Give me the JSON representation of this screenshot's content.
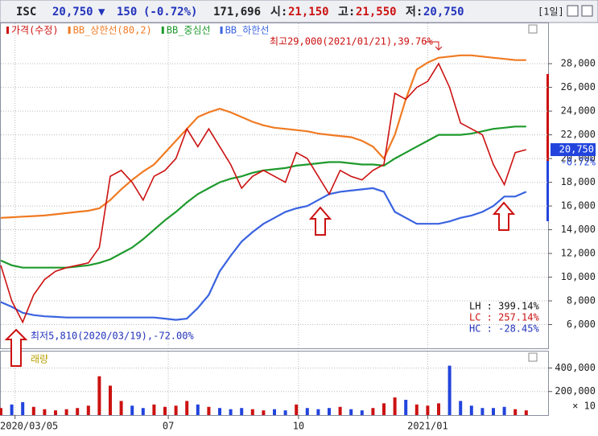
{
  "header": {
    "ticker": "ISC",
    "price": "20,750",
    "arrow": "▼",
    "change": "150",
    "change_pct": "(-0.72%)",
    "volume": "171,696",
    "open_label": "시:",
    "open": "21,150",
    "high_label": "고:",
    "high": "21,550",
    "low_label": "저:",
    "low": "20,750",
    "period": "[1일]"
  },
  "chart_data": [
    {
      "type": "line",
      "x": [
        0,
        1,
        2,
        3,
        4,
        5,
        6,
        7,
        8,
        9,
        10,
        11,
        12,
        13,
        14,
        15,
        16,
        17,
        18,
        19,
        20,
        21,
        22,
        23,
        24,
        25,
        26,
        27,
        28,
        29,
        30,
        31,
        32,
        33,
        34,
        35,
        36,
        37,
        38,
        39,
        40,
        41,
        42,
        43,
        44,
        45,
        46,
        47,
        48
      ],
      "series": [
        {
          "name": "가격(수정)",
          "color": "#cc1111",
          "values": [
            11000,
            8000,
            6200,
            8500,
            9800,
            10500,
            10800,
            11000,
            11200,
            12500,
            18500,
            19000,
            18000,
            16500,
            18500,
            19000,
            20000,
            22500,
            21000,
            22500,
            21000,
            19500,
            17500,
            18500,
            19000,
            18500,
            18000,
            20500,
            20000,
            18500,
            17000,
            19000,
            18500,
            18200,
            19000,
            19500,
            25500,
            25000,
            26000,
            26500,
            28000,
            26000,
            23000,
            22500,
            22000,
            19500,
            17800,
            20500,
            20750
          ]
        },
        {
          "name": "BB_상한선(80,2)",
          "color": "#f07a22",
          "values": [
            15000,
            15050,
            15100,
            15150,
            15200,
            15300,
            15400,
            15500,
            15600,
            15800,
            16500,
            17400,
            18200,
            18900,
            19500,
            20500,
            21500,
            22500,
            23500,
            23900,
            24200,
            23900,
            23500,
            23100,
            22800,
            22600,
            22500,
            22400,
            22300,
            22100,
            22000,
            21900,
            21800,
            21500,
            21000,
            20000,
            22000,
            25000,
            27500,
            28100,
            28500,
            28600,
            28700,
            28700,
            28600,
            28500,
            28400,
            28300,
            28300
          ]
        },
        {
          "name": "BB_중심선",
          "color": "#1e9a2c",
          "values": [
            11400,
            11000,
            10800,
            10800,
            10800,
            10800,
            10800,
            10900,
            11000,
            11200,
            11500,
            12000,
            12500,
            13200,
            14000,
            14800,
            15500,
            16300,
            17000,
            17500,
            18000,
            18300,
            18500,
            18800,
            19000,
            19100,
            19200,
            19400,
            19500,
            19600,
            19700,
            19700,
            19600,
            19500,
            19500,
            19400,
            20000,
            20500,
            21000,
            21500,
            22000,
            22000,
            22000,
            22100,
            22300,
            22500,
            22600,
            22700,
            22700
          ]
        },
        {
          "name": "BB_하한선",
          "color": "#3a63e0",
          "values": [
            7900,
            7500,
            7000,
            6800,
            6700,
            6650,
            6600,
            6600,
            6600,
            6600,
            6600,
            6600,
            6600,
            6600,
            6600,
            6500,
            6400,
            6500,
            7400,
            8500,
            10500,
            11800,
            13000,
            13800,
            14500,
            15000,
            15500,
            15800,
            16000,
            16500,
            17000,
            17200,
            17300,
            17400,
            17500,
            17200,
            15500,
            15000,
            14500,
            14500,
            14500,
            14700,
            15000,
            15200,
            15500,
            16000,
            16800,
            16800,
            17200
          ]
        }
      ],
      "xlim": [
        0,
        50
      ],
      "xticks": [
        1.3,
        15.3,
        27.2,
        39
      ],
      "ylim": [
        4000,
        31400
      ],
      "yticks": [
        {
          "value": 6000,
          "label": "6,000"
        },
        {
          "value": 8000,
          "label": "8,000"
        },
        {
          "value": 10000,
          "label": "10,000"
        },
        {
          "value": 12000,
          "label": "12,000"
        },
        {
          "value": 14000,
          "label": "14,000"
        },
        {
          "value": 16000,
          "label": "16,000"
        },
        {
          "value": 18000,
          "label": "18,000"
        },
        {
          "value": 20000,
          "label": "20,000"
        },
        {
          "value": 22000,
          "label": "22,000"
        },
        {
          "value": 24000,
          "label": "24,000"
        },
        {
          "value": 26000,
          "label": "26,000"
        },
        {
          "value": 28000,
          "label": "28,000"
        }
      ],
      "grid": true,
      "high_note": "최고29,000(2021/01/21),39.76%",
      "low_note": "최저5,810(2020/03/19),-72.00%",
      "last_label": "20,750",
      "last_pct": "-0.72%",
      "stats": [
        "LH : 399.14%",
        "LC : 257.14%",
        "HC : -28.45%"
      ]
    },
    {
      "type": "bar",
      "title": "래량",
      "x": [
        0,
        1,
        2,
        3,
        4,
        5,
        6,
        7,
        8,
        9,
        10,
        11,
        12,
        13,
        14,
        15,
        16,
        17,
        18,
        19,
        20,
        21,
        22,
        23,
        24,
        25,
        26,
        27,
        28,
        29,
        30,
        31,
        32,
        33,
        34,
        35,
        36,
        37,
        38,
        39,
        40,
        41,
        42,
        43,
        44,
        45,
        46,
        47,
        48
      ],
      "values": [
        60000,
        90000,
        110000,
        70000,
        50000,
        40000,
        50000,
        60000,
        80000,
        330000,
        250000,
        120000,
        80000,
        60000,
        90000,
        70000,
        80000,
        120000,
        90000,
        70000,
        60000,
        50000,
        60000,
        50000,
        40000,
        50000,
        40000,
        90000,
        60000,
        50000,
        60000,
        70000,
        50000,
        40000,
        60000,
        100000,
        150000,
        130000,
        90000,
        80000,
        100000,
        420000,
        120000,
        80000,
        60000,
        60000,
        70000,
        50000,
        40000
      ],
      "up_color": "#cc1111",
      "down_color": "#2244dd",
      "xlim": [
        0,
        50
      ],
      "xticks": [
        {
          "value": 1.3,
          "label": "2020/03/05"
        },
        {
          "value": 15.3,
          "label": "07"
        },
        {
          "value": 27.2,
          "label": "10"
        },
        {
          "value": 39,
          "label": "2021/01"
        }
      ],
      "ylim": [
        0,
        540000
      ],
      "yticks": [
        {
          "value": 200000,
          "label": "200,000"
        },
        {
          "value": 400000,
          "label": "400,000"
        }
      ],
      "unit_label": "× 10",
      "grid": true
    }
  ]
}
